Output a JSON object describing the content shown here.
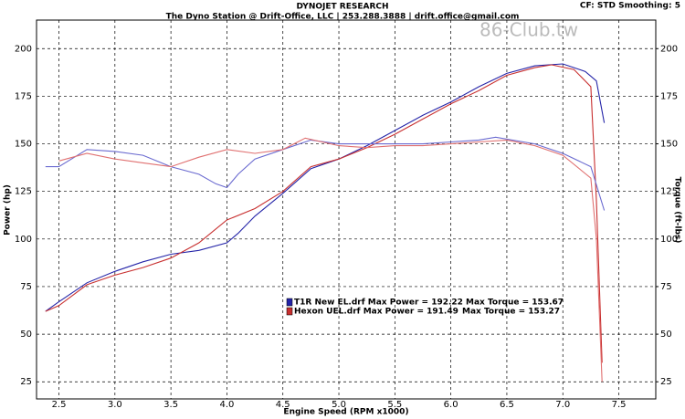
{
  "chart_data": {
    "type": "line",
    "title": "DYNOJET RESEARCH",
    "subtitle": "The Dyno Station @ Drift-Office, LLC | 253.288.3888 | drift.office@gmail.com",
    "settings_text": "CF: STD  Smoothing: 5",
    "watermark": "86-Club.tw",
    "x_label": "Engine Speed (RPM x1000)",
    "y_label": "Power (hp)",
    "y2_label": "Torque (ft-lbs)",
    "xlim": [
      2.3,
      7.83
    ],
    "ylim": [
      16,
      215
    ],
    "y2lim": [
      16,
      215
    ],
    "xticks": [
      2.5,
      {
        "value": 3,
        "label": "3.0"
      },
      3.5,
      {
        "value": 4,
        "label": "4.0"
      },
      4.5,
      {
        "value": 5,
        "label": "5.0"
      },
      5.5,
      {
        "value": 6,
        "label": "6.0"
      },
      6.5,
      {
        "value": 7,
        "label": "7.0"
      },
      7.5
    ],
    "yticks": [
      25,
      50,
      75,
      100,
      125,
      150,
      175,
      200
    ],
    "y2ticks": [
      25,
      50,
      75,
      100,
      125,
      150,
      175,
      200
    ],
    "grid": true,
    "legend": [
      {
        "label": "T1R New EL.drf Max Power = 192.22",
        "torque": "Max Torque = 153.67",
        "color": "#2424a8"
      },
      {
        "label": "Hexon UEL.drf Max Power = 191.49",
        "torque": "Max Torque = 153.27",
        "color": "#c83030"
      }
    ],
    "series": [
      {
        "color": "#2424a8",
        "x": [
          2.38,
          2.5,
          2.75,
          3.0,
          3.25,
          3.5,
          3.75,
          4.0,
          4.1,
          4.25,
          4.5,
          4.75,
          5.0,
          5.25,
          5.5,
          5.75,
          6.0,
          6.25,
          6.5,
          6.75,
          7.0,
          7.2,
          7.3,
          7.37
        ],
        "values": [
          62,
          67,
          77,
          83,
          88,
          92,
          94,
          98,
          103,
          112,
          124,
          137,
          142,
          149,
          157,
          165,
          172,
          180,
          187,
          191,
          192,
          188,
          183,
          161
        ]
      },
      {
        "color": "#c83030",
        "x": [
          2.38,
          2.5,
          2.75,
          3.0,
          3.25,
          3.5,
          3.75,
          4.0,
          4.25,
          4.5,
          4.75,
          5.0,
          5.25,
          5.5,
          5.75,
          6.0,
          6.25,
          6.5,
          6.75,
          6.9,
          7.1,
          7.25,
          7.3,
          7.35
        ],
        "values": [
          62,
          65,
          76,
          81,
          85,
          90,
          98,
          110,
          116,
          125,
          138,
          142,
          148,
          155,
          163,
          171,
          178,
          186,
          190,
          191.5,
          189,
          180,
          120,
          35
        ]
      },
      {
        "color": "#6a6ad0",
        "axis": "y2",
        "x": [
          2.38,
          2.5,
          2.75,
          3.0,
          3.25,
          3.5,
          3.75,
          3.9,
          4.0,
          4.1,
          4.25,
          4.5,
          4.75,
          5.0,
          5.25,
          5.5,
          5.75,
          6.0,
          6.25,
          6.4,
          6.75,
          7.0,
          7.25,
          7.37
        ],
        "values": [
          138,
          138,
          147,
          146,
          144,
          138,
          134,
          129,
          127,
          134,
          142,
          147,
          152,
          150,
          150,
          150,
          150,
          151,
          152,
          153.5,
          150,
          145,
          138,
          115
        ]
      },
      {
        "color": "#e07070",
        "axis": "y2",
        "x": [
          2.5,
          2.75,
          3.0,
          3.25,
          3.5,
          3.75,
          4.0,
          4.25,
          4.5,
          4.7,
          5.0,
          5.25,
          5.5,
          5.75,
          6.0,
          6.25,
          6.5,
          6.75,
          7.0,
          7.25,
          7.3,
          7.35
        ],
        "values": [
          141,
          145,
          142,
          140,
          138,
          143,
          147,
          145,
          147,
          153,
          149,
          148,
          149,
          149,
          150,
          151,
          152,
          149,
          144,
          132,
          100,
          25
        ]
      }
    ]
  }
}
